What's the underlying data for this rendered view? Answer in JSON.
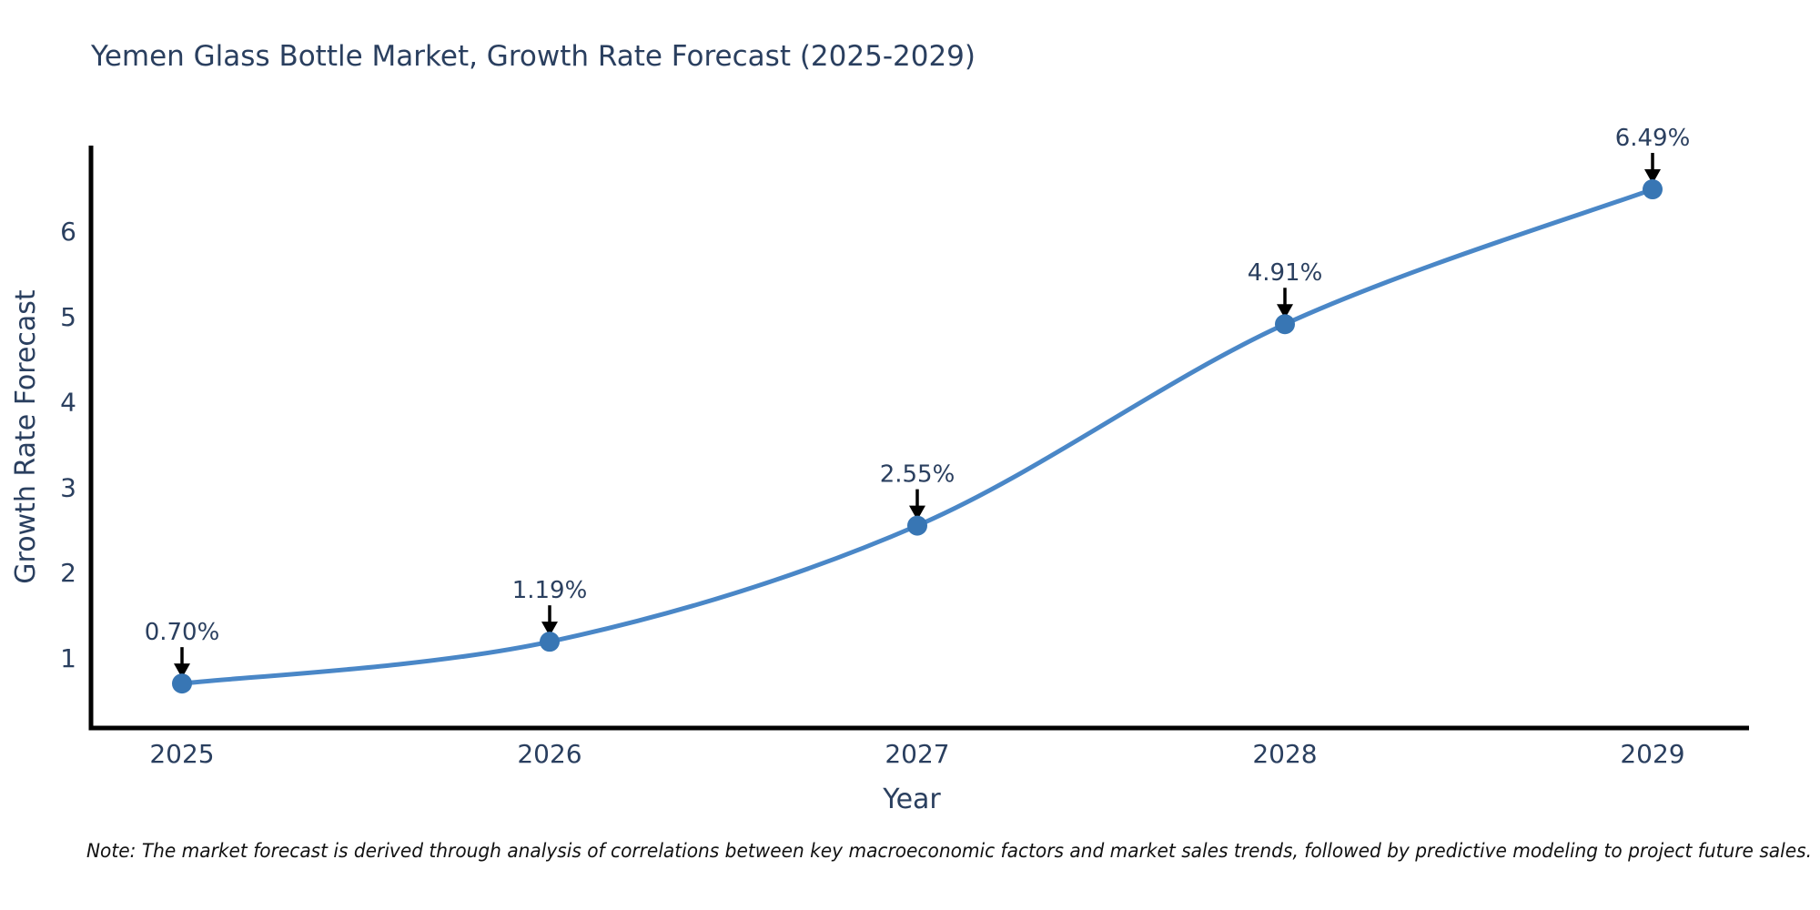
{
  "chart": {
    "title": "Yemen Glass Bottle Market, Growth Rate Forecast (2025-2029)",
    "x_axis_title": "Year",
    "y_axis_title": "Growth Rate Forecast",
    "note": "Note: The market forecast is derived through analysis of correlations between key macroeconomic factors and market sales trends, followed by predictive modeling to project future sales."
  },
  "chart_data": {
    "type": "line",
    "line_shape": "spline",
    "title": "Yemen Glass Bottle Market, Growth Rate Forecast (2025-2029)",
    "xlabel": "Year",
    "ylabel": "Growth Rate Forecast",
    "categories": [
      "2025",
      "2026",
      "2027",
      "2028",
      "2029"
    ],
    "values": [
      0.7,
      1.19,
      2.55,
      4.91,
      6.49
    ],
    "point_labels": [
      "0.70%",
      "1.19%",
      "2.55%",
      "4.91%",
      "6.49%"
    ],
    "yticks": [
      1,
      2,
      3,
      4,
      5,
      6
    ],
    "ylim": [
      0.18,
      7.0
    ],
    "grid": false,
    "legend": false,
    "annotations_have_arrows": true,
    "colors": {
      "line": "#4a87c7",
      "marker": "#3876b4",
      "axis": "#000000",
      "arrow": "#000000",
      "text": "#2a3f5f",
      "note_text": "#111111",
      "background": "#ffffff"
    }
  }
}
